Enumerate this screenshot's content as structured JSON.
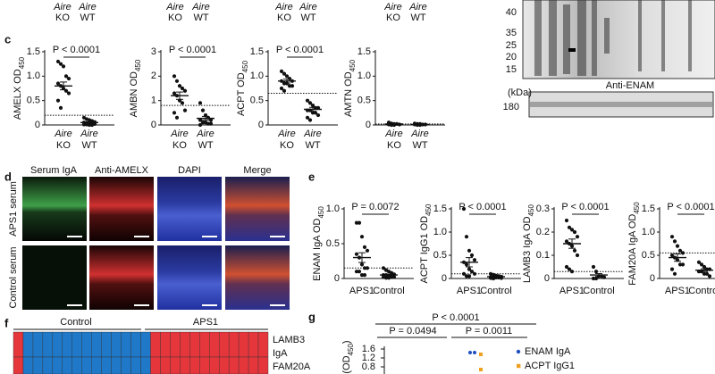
{
  "header_remnant": {
    "group": "Aire",
    "categories": [
      "KO",
      "WT"
    ]
  },
  "blot": {
    "kda_ticks": [
      40,
      35,
      25,
      20,
      15
    ],
    "unit": "(kDa)",
    "antibody": "Anti-ENAM",
    "lower_tick": 180
  },
  "panel_c": {
    "label": "c",
    "plots": [
      {
        "ylabel": "AMELX OD",
        "ylabel_sub": "450",
        "group": "Aire",
        "categories": [
          "KO",
          "WT"
        ],
        "ylim": [
          0,
          1.5
        ],
        "yticks": [
          0,
          0.5,
          {
            "value": 1,
            "label": "1.0"
          },
          1.5
        ],
        "p_label": "P < 0.0001",
        "threshold": 0.2,
        "series": [
          {
            "values": [
              1.3,
              1.25,
              1.2,
              1.0,
              0.95,
              0.85,
              0.8,
              0.75,
              0.7,
              0.65,
              0.5,
              0.35
            ],
            "mean": 0.8,
            "sem": 0.08
          },
          {
            "values": [
              0.15,
              0.12,
              0.1,
              0.08,
              0.06,
              0.05,
              0.04,
              0.03,
              0.02,
              0.02,
              0.01,
              0.01,
              0,
              0
            ],
            "mean": 0.05,
            "sem": 0.015
          }
        ]
      },
      {
        "ylabel": "AMBN OD",
        "ylabel_sub": "450",
        "group": "Aire",
        "categories": [
          "KO",
          "WT"
        ],
        "ylim": [
          0,
          3
        ],
        "yticks": [
          0,
          1,
          2,
          3
        ],
        "p_label": "P < 0.0001",
        "threshold": 0.8,
        "series": [
          {
            "values": [
              2.0,
              1.8,
              1.6,
              1.5,
              1.4,
              1.3,
              1.2,
              1.0,
              0.9,
              0.6,
              0.5,
              0.3
            ],
            "mean": 1.2,
            "sem": 0.15
          },
          {
            "values": [
              0.9,
              0.6,
              0.4,
              0.3,
              0.2,
              0.2,
              0.1,
              0.1,
              0.05,
              0.05,
              0
            ],
            "mean": 0.27,
            "sem": 0.08
          }
        ]
      },
      {
        "ylabel": "ACPT OD",
        "ylabel_sub": "450",
        "group": "Aire",
        "categories": [
          "KO",
          "WT"
        ],
        "ylim": [
          0,
          1.5
        ],
        "yticks": [
          0,
          0.5,
          {
            "value": 1,
            "label": "1.0"
          },
          1.5
        ],
        "p_label": "P < 0.0001",
        "threshold": 0.65,
        "series": [
          {
            "values": [
              1.1,
              1.05,
              1.0,
              0.95,
              0.9,
              0.9,
              0.85,
              0.85,
              0.8,
              0.8,
              0.75,
              0.7
            ],
            "mean": 0.9,
            "sem": 0.04
          },
          {
            "values": [
              0.5,
              0.45,
              0.4,
              0.35,
              0.35,
              0.3,
              0.3,
              0.25,
              0.25,
              0.2,
              0.15,
              0.1
            ],
            "mean": 0.32,
            "sem": 0.04
          }
        ]
      },
      {
        "ylabel": "AMTN OD",
        "ylabel_sub": "450",
        "group": "Aire",
        "categories": [
          "KO",
          "WT"
        ],
        "ylim": [
          0,
          1.5
        ],
        "yticks": [
          0,
          0.5,
          {
            "value": 1,
            "label": "1.0"
          },
          1.5
        ],
        "threshold": 0.02,
        "series": [
          {
            "values": [
              0.05,
              0.03,
              0.02,
              0.02,
              0.01,
              0.01,
              0,
              0
            ],
            "mean": 0.02,
            "sem": 0.005
          },
          {
            "values": [
              0.03,
              0.02,
              0.02,
              0.01,
              0.01,
              0.01,
              0,
              0
            ],
            "mean": 0.01,
            "sem": 0.004
          }
        ]
      }
    ]
  },
  "panel_d": {
    "label": "d",
    "columns": [
      "Serum IgA",
      "Anti-AMELX",
      "DAPI",
      "Merge"
    ],
    "rows": [
      "APS1 serum",
      "Control serum"
    ]
  },
  "panel_e": {
    "label": "e",
    "plots": [
      {
        "ylabel": "ENAM IgA OD",
        "ylabel_sub": "450",
        "categories": [
          "APS1",
          "Control"
        ],
        "ylim": [
          0,
          1
        ],
        "yticks": [
          0,
          0.5,
          {
            "value": 1,
            "label": "1.0"
          }
        ],
        "p_label": "P = 0.0072",
        "threshold": 0.15,
        "series": [
          {
            "values": [
              0.8,
              0.8,
              0.6,
              0.45,
              0.4,
              0.35,
              0.3,
              0.2,
              0.15,
              0.15,
              0.1,
              0.1,
              0.05,
              0.05
            ],
            "mean": 0.3,
            "sem": 0.07
          },
          {
            "values": [
              0.15,
              0.12,
              0.1,
              0.08,
              0.06,
              0.05,
              0.05,
              0.04,
              0.03,
              0.02,
              0.02,
              0.01,
              0.01
            ],
            "mean": 0.05,
            "sem": 0.012
          }
        ]
      },
      {
        "ylabel": "ACPT IgG1 OD",
        "ylabel_sub": "450",
        "categories": [
          "APS1",
          "Control"
        ],
        "ylim": [
          0,
          1.5
        ],
        "yticks": [
          0,
          0.5,
          {
            "value": 1,
            "label": "1.0"
          },
          1.5
        ],
        "p_label": "P < 0.0001",
        "threshold": 0.1,
        "series": [
          {
            "values": [
              1.5,
              0.9,
              0.6,
              0.5,
              0.4,
              0.35,
              0.3,
              0.2,
              0.15,
              0.1,
              0.1,
              0.05,
              0.05
            ],
            "mean": 0.35,
            "sem": 0.1
          },
          {
            "values": [
              0.1,
              0.08,
              0.06,
              0.05,
              0.04,
              0.03,
              0.03,
              0.02,
              0.02,
              0.01,
              0.01,
              0
            ],
            "mean": 0.04,
            "sem": 0.01
          }
        ]
      },
      {
        "ylabel": "LAMB3 IgA OD",
        "ylabel_sub": "450",
        "categories": [
          "APS1",
          "Control"
        ],
        "ylim": [
          0,
          0.3
        ],
        "yticks": [
          0,
          0.1,
          0.2,
          0.3
        ],
        "p_label": "P < 0.0001",
        "threshold": 0.03,
        "series": [
          {
            "values": [
              0.25,
              0.22,
              0.21,
              0.2,
              0.18,
              0.16,
              0.15,
              0.14,
              0.12,
              0.1,
              0.05,
              0.04,
              0.03
            ],
            "mean": 0.15,
            "sem": 0.02
          },
          {
            "values": [
              0.05,
              0.03,
              0.01,
              0.01,
              0.005,
              0,
              0
            ],
            "mean": 0.015,
            "sem": 0.006
          }
        ]
      },
      {
        "ylabel": "FAM20A IgA OD",
        "ylabel_sub": "450",
        "categories": [
          "APS1",
          "Control"
        ],
        "ylim": [
          0,
          1.5
        ],
        "yticks": [
          0,
          0.5,
          {
            "value": 1,
            "label": "1.0"
          },
          1.5
        ],
        "p_label": "P < 0.0001",
        "threshold": 0.55,
        "series": [
          {
            "values": [
              0.9,
              0.8,
              0.7,
              0.6,
              0.55,
              0.5,
              0.45,
              0.4,
              0.3,
              0.3,
              0.2,
              0.1
            ],
            "mean": 0.45,
            "sem": 0.08
          },
          {
            "values": [
              0.35,
              0.3,
              0.25,
              0.2,
              0.2,
              0.15,
              0.15,
              0.1,
              0.1,
              0.05
            ],
            "mean": 0.18,
            "sem": 0.03
          }
        ]
      }
    ]
  },
  "panel_f": {
    "label": "f",
    "groups": [
      "Control",
      "APS1"
    ],
    "rows": [
      [
        "LAMB3",
        "IgA"
      ],
      [
        "FAM20A"
      ]
    ],
    "colors": {
      "positive": "#e5363c",
      "negative": "#1f78c8"
    },
    "cells": [
      [
        1,
        0,
        0,
        0,
        0,
        0,
        0,
        0,
        0,
        0,
        0,
        0,
        0,
        0,
        1,
        1,
        1,
        1,
        1,
        1,
        1,
        1,
        1,
        1,
        1,
        1
      ],
      [
        1,
        0,
        0,
        0,
        0,
        0,
        0,
        0,
        0,
        0,
        0,
        0,
        0,
        0,
        1,
        1,
        1,
        1,
        1,
        1,
        1,
        1,
        1,
        1,
        1,
        1
      ]
    ]
  },
  "panel_g": {
    "label": "g",
    "comparisons": [
      "P < 0.0001",
      "P = 0.0494",
      "P = 0.0011"
    ],
    "ylabel": "(OD",
    "ylabel_sub": "450",
    "ylabel_end": ")",
    "yticks": [
      1.6,
      1.2,
      0.8
    ],
    "series": [
      {
        "name": "ENAM IgA",
        "color": "#1f4fbf",
        "values": [
          1.44,
          1.44
        ]
      },
      {
        "name": "ACPT IgG1",
        "color": "#f0a020",
        "values": [
          1.36,
          0.68
        ]
      }
    ]
  }
}
